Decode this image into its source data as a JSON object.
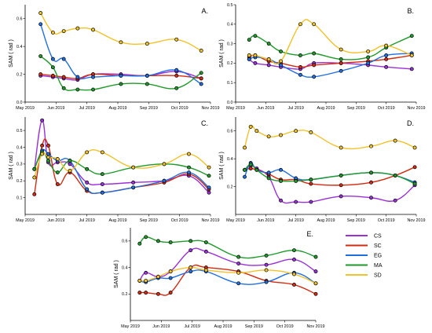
{
  "chart_data": [
    {
      "type": "line",
      "panel": "A.",
      "ylabel": "SAM ( rad )",
      "x_ticks": [
        "May 2019",
        "Jun 2019",
        "Jul 2019",
        "Aug 2019",
        "Sep 2019",
        "Oct 2019",
        "Nov 2019"
      ],
      "xlim": [
        0,
        6
      ],
      "ylim": [
        0,
        0.7
      ],
      "y_ticks": [
        0.0,
        0.2,
        0.4,
        0.6
      ],
      "x": [
        0.5,
        0.9,
        1.25,
        1.7,
        2.2,
        3.1,
        3.95,
        4.9,
        5.7
      ],
      "series": [
        {
          "name": "CS",
          "values": [
            0.19,
            0.18,
            0.17,
            0.16,
            0.2,
            0.2,
            0.19,
            0.22,
            0.17
          ]
        },
        {
          "name": "SC",
          "values": [
            0.2,
            0.19,
            0.18,
            0.17,
            0.2,
            0.19,
            0.19,
            0.19,
            0.17
          ]
        },
        {
          "name": "EG",
          "values": [
            0.56,
            0.31,
            0.31,
            0.18,
            0.18,
            0.19,
            0.19,
            0.23,
            0.13
          ]
        },
        {
          "name": "MA",
          "values": [
            0.33,
            0.25,
            0.1,
            0.09,
            0.09,
            0.13,
            0.13,
            0.1,
            0.21
          ]
        },
        {
          "name": "SD",
          "values": [
            0.64,
            0.5,
            0.51,
            0.53,
            0.52,
            0.43,
            0.42,
            0.45,
            0.37
          ]
        }
      ]
    },
    {
      "type": "line",
      "panel": "B.",
      "ylabel": "SAM ( rad )",
      "x_ticks": [
        "May 2019",
        "Jun 2019",
        "Jul 2019",
        "Aug 2019",
        "Sep 2019",
        "Oct 2019",
        "Nov 2019"
      ],
      "xlim": [
        0,
        6
      ],
      "ylim": [
        0,
        0.5
      ],
      "y_ticks": [
        0.0,
        0.1,
        0.2,
        0.3,
        0.4,
        0.5
      ],
      "x": [
        0.45,
        0.65,
        1.1,
        1.5,
        2.15,
        2.6,
        3.5,
        4.4,
        5.0,
        5.85
      ],
      "series": [
        {
          "name": "CS",
          "values": [
            0.22,
            0.2,
            0.19,
            0.18,
            0.17,
            0.2,
            0.2,
            0.19,
            0.18,
            0.17
          ]
        },
        {
          "name": "SC",
          "values": [
            0.23,
            0.24,
            0.21,
            0.2,
            0.18,
            0.19,
            0.2,
            0.21,
            0.22,
            0.24
          ]
        },
        {
          "name": "EG",
          "values": [
            0.22,
            0.23,
            0.22,
            0.19,
            0.14,
            0.13,
            0.16,
            0.2,
            0.24,
            0.25
          ]
        },
        {
          "name": "MA",
          "values": [
            0.32,
            0.34,
            0.3,
            0.26,
            0.24,
            0.25,
            0.22,
            0.23,
            0.28,
            0.34
          ]
        },
        {
          "name": "SD",
          "values": [
            0.24,
            0.24,
            0.22,
            0.21,
            0.4,
            0.4,
            0.27,
            0.26,
            0.29,
            0.24
          ]
        }
      ]
    },
    {
      "type": "line",
      "panel": "C.",
      "ylabel": "SAM ( rad )",
      "x_ticks": [
        "May 2019",
        "Jun 2019",
        "Jul 2019",
        "Aug 2019",
        "Sep 2019",
        "Oct 2019",
        "Nov 2019"
      ],
      "xlim": [
        0,
        6
      ],
      "ylim": [
        0,
        0.58
      ],
      "y_ticks": [
        0.1,
        0.2,
        0.3,
        0.4,
        0.5
      ],
      "x": [
        0.3,
        0.55,
        0.75,
        1.05,
        1.45,
        2.0,
        2.5,
        3.5,
        4.5,
        5.3,
        5.95
      ],
      "series": [
        {
          "name": "CS",
          "values": [
            0.27,
            0.56,
            0.31,
            0.31,
            0.3,
            0.19,
            0.18,
            0.19,
            0.2,
            0.23,
            0.13
          ]
        },
        {
          "name": "SC",
          "values": [
            0.12,
            0.41,
            0.41,
            0.18,
            0.25,
            0.14,
            0.13,
            0.16,
            0.19,
            0.24,
            0.15
          ]
        },
        {
          "name": "EG",
          "values": [
            0.27,
            0.38,
            0.36,
            0.32,
            0.32,
            0.15,
            0.13,
            0.16,
            0.2,
            0.25,
            0.16
          ]
        },
        {
          "name": "MA",
          "values": [
            0.27,
            0.37,
            0.32,
            0.25,
            0.32,
            0.27,
            0.24,
            0.28,
            0.3,
            0.28,
            0.23
          ]
        },
        {
          "name": "SD",
          "values": [
            0.22,
            0.36,
            0.34,
            0.33,
            0.26,
            0.37,
            0.37,
            0.28,
            0.3,
            0.36,
            0.28
          ]
        }
      ]
    },
    {
      "type": "line",
      "panel": "D.",
      "ylabel": "SAM ( rad )",
      "x_ticks": [
        "May 2019",
        "Jun 2019",
        "Jul 2019",
        "Aug 2019",
        "Sep 2019",
        "Oct 2019",
        "Nov 2019"
      ],
      "xlim": [
        0,
        6
      ],
      "ylim": [
        0,
        0.7
      ],
      "y_ticks": [
        0.2,
        0.4,
        0.6
      ],
      "x": [
        0.3,
        0.5,
        0.7,
        1.1,
        1.5,
        2.0,
        2.5,
        3.5,
        4.5,
        5.3,
        5.95
      ],
      "series": [
        {
          "name": "CS",
          "values": [
            0.32,
            0.35,
            0.33,
            0.27,
            0.1,
            0.09,
            0.09,
            0.13,
            0.12,
            0.1,
            0.21
          ]
        },
        {
          "name": "SC",
          "values": [
            0.32,
            0.33,
            0.32,
            0.29,
            0.25,
            0.25,
            0.22,
            0.21,
            0.23,
            0.28,
            0.34
          ]
        },
        {
          "name": "EG",
          "values": [
            0.27,
            0.37,
            0.32,
            0.3,
            0.32,
            0.26,
            0.25,
            0.28,
            0.3,
            0.28,
            0.23
          ]
        },
        {
          "name": "MA",
          "values": [
            0.32,
            0.36,
            0.32,
            0.26,
            0.24,
            0.24,
            0.25,
            0.28,
            0.3,
            0.28,
            0.22
          ]
        },
        {
          "name": "SD",
          "values": [
            0.48,
            0.63,
            0.6,
            0.56,
            0.57,
            0.6,
            0.59,
            0.48,
            0.49,
            0.53,
            0.48
          ]
        }
      ]
    },
    {
      "type": "line",
      "panel": "E.",
      "ylabel": "SAM ( rad )",
      "x_ticks": [
        "May 2019",
        "Jun 2019",
        "Jul 2019",
        "Aug 2019",
        "Sep 2019",
        "Oct 2019",
        "Nov 2019"
      ],
      "xlim": [
        0,
        6
      ],
      "ylim": [
        0,
        0.7
      ],
      "y_ticks": [
        0.2,
        0.4,
        0.6
      ],
      "x": [
        0.3,
        0.5,
        0.9,
        1.3,
        1.95,
        2.45,
        3.5,
        4.4,
        5.3,
        6.0
      ],
      "series": [
        {
          "name": "CS",
          "values": [
            0.3,
            0.36,
            0.33,
            0.37,
            0.53,
            0.52,
            0.43,
            0.42,
            0.46,
            0.37
          ]
        },
        {
          "name": "SC",
          "values": [
            0.21,
            0.21,
            0.2,
            0.21,
            0.4,
            0.4,
            0.37,
            0.3,
            0.27,
            0.2
          ]
        },
        {
          "name": "EG",
          "values": [
            0.3,
            0.29,
            0.32,
            0.32,
            0.37,
            0.37,
            0.28,
            0.29,
            0.36,
            0.28
          ]
        },
        {
          "name": "MA",
          "values": [
            0.58,
            0.63,
            0.6,
            0.59,
            0.6,
            0.59,
            0.48,
            0.49,
            0.53,
            0.48
          ]
        },
        {
          "name": "SD",
          "values": [
            0.3,
            0.3,
            0.33,
            0.37,
            0.4,
            0.38,
            0.36,
            0.38,
            0.35,
            0.28
          ]
        }
      ]
    }
  ],
  "legend": [
    {
      "name": "CS",
      "color": "#9b30d9"
    },
    {
      "name": "SC",
      "color": "#d42a10"
    },
    {
      "name": "EG",
      "color": "#1f6fe0"
    },
    {
      "name": "MA",
      "color": "#1f9a2a"
    },
    {
      "name": "SD",
      "color": "#f2c22a"
    }
  ]
}
